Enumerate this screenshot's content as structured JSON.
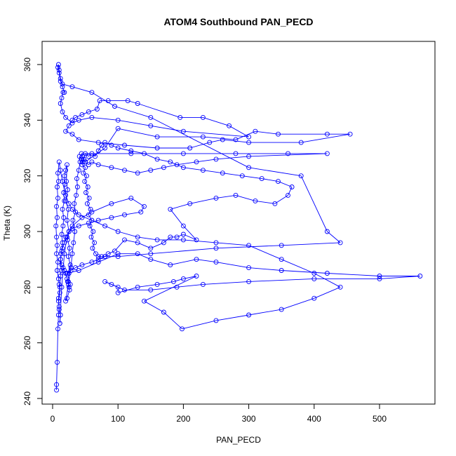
{
  "chart_data": {
    "type": "line",
    "title": "ATOM4 Southbound PAN_PECD",
    "xlabel": "PAN_PECD",
    "ylabel": "Theta (K)",
    "xlim": [
      0,
      560
    ],
    "ylim": [
      240,
      365
    ],
    "x_ticks": [
      0,
      100,
      200,
      300,
      400,
      500
    ],
    "y_ticks": [
      240,
      260,
      280,
      300,
      320,
      340,
      360
    ],
    "grid": false,
    "series_color": "#0000ff",
    "marker": "open-circle",
    "series": [
      {
        "points": [
          [
            6,
            243
          ],
          [
            6,
            245
          ],
          [
            7,
            253
          ],
          [
            8,
            265
          ],
          [
            9,
            270
          ],
          [
            10,
            273
          ],
          [
            9,
            276
          ],
          [
            11,
            280
          ],
          [
            12,
            284
          ],
          [
            13,
            286
          ],
          [
            12,
            290
          ],
          [
            14,
            293
          ],
          [
            15,
            296
          ],
          [
            14,
            299
          ],
          [
            16,
            302
          ],
          [
            17,
            305
          ],
          [
            15,
            308
          ],
          [
            18,
            311
          ],
          [
            17,
            314
          ],
          [
            19,
            317
          ],
          [
            18,
            320
          ],
          [
            20,
            322
          ],
          [
            22,
            324
          ],
          [
            21,
            318
          ],
          [
            23,
            315
          ],
          [
            20,
            311
          ],
          [
            24,
            308
          ],
          [
            22,
            304
          ],
          [
            25,
            300
          ],
          [
            23,
            297
          ],
          [
            26,
            294
          ],
          [
            24,
            291
          ],
          [
            27,
            288
          ],
          [
            25,
            285
          ],
          [
            23,
            282
          ],
          [
            26,
            279
          ],
          [
            22,
            276
          ],
          [
            20,
            275
          ],
          [
            24,
            281
          ],
          [
            28,
            287
          ],
          [
            30,
            292
          ],
          [
            32,
            296
          ],
          [
            34,
            300
          ],
          [
            31,
            304
          ],
          [
            35,
            307
          ],
          [
            33,
            310
          ],
          [
            36,
            313
          ],
          [
            38,
            316
          ],
          [
            37,
            319
          ],
          [
            40,
            322
          ],
          [
            42,
            325
          ],
          [
            41,
            327
          ],
          [
            44,
            326
          ],
          [
            46,
            325
          ],
          [
            48,
            326
          ],
          [
            45,
            324
          ],
          [
            50,
            323
          ],
          [
            47,
            321
          ],
          [
            52,
            320
          ],
          [
            49,
            318
          ],
          [
            54,
            316
          ],
          [
            51,
            314
          ],
          [
            56,
            312
          ],
          [
            53,
            310
          ],
          [
            58,
            308
          ],
          [
            55,
            306
          ],
          [
            60,
            304
          ],
          [
            57,
            302
          ],
          [
            62,
            300
          ],
          [
            59,
            298
          ],
          [
            64,
            296
          ],
          [
            61,
            294
          ],
          [
            66,
            292
          ],
          [
            70,
            291
          ],
          [
            75,
            291
          ],
          [
            80,
            291
          ],
          [
            85,
            292
          ],
          [
            95,
            293
          ],
          [
            110,
            297
          ],
          [
            130,
            296
          ],
          [
            150,
            294
          ],
          [
            170,
            296
          ],
          [
            180,
            298
          ],
          [
            190,
            298
          ],
          [
            200,
            299
          ],
          [
            220,
            297
          ],
          [
            200,
            302
          ],
          [
            180,
            308
          ],
          [
            210,
            310
          ],
          [
            250,
            312
          ],
          [
            280,
            313
          ],
          [
            310,
            311
          ],
          [
            340,
            310
          ],
          [
            360,
            313
          ],
          [
            366,
            316
          ],
          [
            345,
            318
          ],
          [
            320,
            319
          ],
          [
            290,
            320
          ],
          [
            260,
            321
          ],
          [
            230,
            322
          ],
          [
            200,
            323
          ],
          [
            180,
            325
          ],
          [
            160,
            326
          ],
          [
            140,
            328
          ],
          [
            120,
            329
          ],
          [
            100,
            330
          ],
          [
            90,
            331
          ],
          [
            80,
            332
          ],
          [
            75,
            331
          ],
          [
            70,
            329
          ],
          [
            65,
            327
          ],
          [
            60,
            328
          ],
          [
            55,
            327
          ],
          [
            50,
            328
          ],
          [
            48,
            326
          ],
          [
            46,
            327
          ],
          [
            44,
            328
          ],
          [
            120,
            328
          ],
          [
            200,
            328
          ],
          [
            280,
            328
          ],
          [
            360,
            328
          ],
          [
            420,
            328
          ],
          [
            300,
            327
          ],
          [
            250,
            326
          ],
          [
            220,
            325
          ],
          [
            190,
            324
          ],
          [
            170,
            323
          ],
          [
            150,
            322
          ],
          [
            130,
            321
          ],
          [
            110,
            322
          ],
          [
            90,
            323
          ],
          [
            70,
            324
          ],
          [
            60,
            325
          ],
          [
            55,
            324
          ],
          [
            50,
            325
          ]
        ]
      },
      {
        "points": [
          [
            50,
            325
          ],
          [
            80,
            330
          ],
          [
            100,
            337
          ],
          [
            160,
            334
          ],
          [
            230,
            334
          ],
          [
            280,
            333
          ],
          [
            310,
            336
          ],
          [
            345,
            335
          ],
          [
            420,
            335
          ],
          [
            455,
            335
          ],
          [
            380,
            332
          ],
          [
            300,
            332
          ],
          [
            260,
            333
          ],
          [
            240,
            332
          ],
          [
            210,
            330
          ],
          [
            160,
            330
          ],
          [
            110,
            331
          ],
          [
            70,
            332
          ],
          [
            40,
            333
          ],
          [
            30,
            335
          ],
          [
            20,
            336
          ],
          [
            25,
            338
          ],
          [
            30,
            340
          ],
          [
            35,
            341
          ],
          [
            45,
            342
          ],
          [
            55,
            343
          ],
          [
            68,
            344
          ],
          [
            72,
            347
          ],
          [
            85,
            347
          ],
          [
            115,
            347
          ],
          [
            130,
            346
          ],
          [
            195,
            341
          ],
          [
            230,
            341
          ],
          [
            270,
            338
          ],
          [
            300,
            334
          ],
          [
            200,
            336
          ],
          [
            150,
            338
          ],
          [
            100,
            340
          ],
          [
            60,
            341
          ],
          [
            40,
            340
          ],
          [
            30,
            339
          ],
          [
            20,
            341
          ],
          [
            15,
            343
          ],
          [
            12,
            346
          ],
          [
            14,
            348
          ],
          [
            16,
            350
          ],
          [
            18,
            350
          ],
          [
            15,
            352
          ],
          [
            12,
            355
          ],
          [
            10,
            358
          ],
          [
            9,
            360
          ],
          [
            8,
            359
          ],
          [
            10,
            357
          ],
          [
            12,
            354
          ],
          [
            15,
            353
          ],
          [
            30,
            352
          ],
          [
            60,
            350
          ],
          [
            95,
            345
          ],
          [
            150,
            341
          ],
          [
            300,
            323
          ],
          [
            380,
            320
          ],
          [
            420,
            300
          ],
          [
            440,
            296
          ],
          [
            350,
            295
          ],
          [
            250,
            294
          ],
          [
            150,
            292
          ],
          [
            100,
            291
          ],
          [
            80,
            291
          ],
          [
            70,
            290
          ],
          [
            60,
            289
          ],
          [
            45,
            288
          ],
          [
            35,
            287
          ],
          [
            28,
            286
          ],
          [
            22,
            285
          ]
        ]
      },
      {
        "points": [
          [
            22,
            285
          ],
          [
            40,
            286
          ],
          [
            70,
            289
          ],
          [
            100,
            292
          ],
          [
            130,
            292
          ],
          [
            150,
            290
          ],
          [
            180,
            288
          ],
          [
            220,
            290
          ],
          [
            250,
            289
          ],
          [
            300,
            287
          ],
          [
            350,
            286
          ],
          [
            420,
            285
          ],
          [
            500,
            284
          ],
          [
            562,
            284
          ],
          [
            500,
            283
          ],
          [
            400,
            283
          ],
          [
            300,
            282
          ],
          [
            230,
            281
          ],
          [
            190,
            280
          ],
          [
            150,
            279
          ],
          [
            110,
            279
          ],
          [
            90,
            281
          ],
          [
            80,
            282
          ],
          [
            100,
            280
          ],
          [
            100,
            278
          ],
          [
            130,
            280
          ],
          [
            160,
            281
          ],
          [
            185,
            282
          ],
          [
            200,
            283
          ],
          [
            220,
            284
          ],
          [
            140,
            275
          ],
          [
            170,
            271
          ],
          [
            198,
            265
          ],
          [
            250,
            268
          ],
          [
            300,
            270
          ],
          [
            350,
            272
          ],
          [
            400,
            276
          ],
          [
            440,
            280
          ],
          [
            400,
            285
          ],
          [
            350,
            290
          ],
          [
            300,
            295
          ],
          [
            250,
            296
          ],
          [
            200,
            297
          ],
          [
            160,
            297
          ],
          [
            130,
            298
          ],
          [
            100,
            300
          ],
          [
            80,
            302
          ],
          [
            60,
            304
          ],
          [
            40,
            306
          ],
          [
            30,
            308
          ],
          [
            25,
            310
          ],
          [
            20,
            313
          ],
          [
            15,
            318
          ],
          [
            12,
            322
          ],
          [
            10,
            325
          ],
          [
            8,
            321
          ],
          [
            9,
            318
          ],
          [
            7,
            316
          ],
          [
            8,
            312
          ],
          [
            6,
            309
          ],
          [
            7,
            305
          ],
          [
            5,
            302
          ],
          [
            6,
            298
          ],
          [
            7,
            295
          ],
          [
            6,
            292
          ],
          [
            8,
            289
          ],
          [
            7,
            286
          ],
          [
            9,
            283
          ],
          [
            10,
            281
          ],
          [
            11,
            278
          ],
          [
            9,
            275
          ],
          [
            10,
            272
          ],
          [
            12,
            270
          ],
          [
            11,
            267
          ]
        ]
      },
      {
        "points": [
          [
            11,
            267
          ],
          [
            14,
            280
          ],
          [
            18,
            292
          ],
          [
            22,
            298
          ],
          [
            30,
            302
          ],
          [
            45,
            305
          ],
          [
            60,
            307
          ],
          [
            90,
            310
          ],
          [
            120,
            312
          ],
          [
            140,
            309
          ],
          [
            135,
            307
          ],
          [
            110,
            306
          ],
          [
            90,
            305
          ],
          [
            70,
            304
          ],
          [
            55,
            303
          ],
          [
            40,
            302
          ],
          [
            30,
            301
          ],
          [
            25,
            300
          ],
          [
            20,
            298
          ],
          [
            18,
            296
          ],
          [
            15,
            294
          ],
          [
            13,
            292
          ],
          [
            12,
            290
          ],
          [
            14,
            288
          ],
          [
            16,
            287
          ],
          [
            18,
            286
          ],
          [
            20,
            285
          ],
          [
            22,
            283
          ],
          [
            24,
            282
          ],
          [
            25,
            280
          ],
          [
            27,
            281
          ]
        ]
      }
    ]
  }
}
